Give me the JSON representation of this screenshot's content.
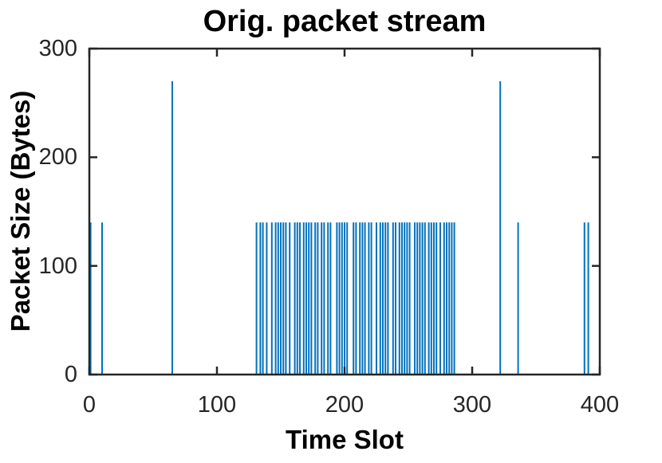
{
  "figure": {
    "background": "#ffffff"
  },
  "chart_data": {
    "type": "bar",
    "subtype": "stem-impulse",
    "title": "Orig. packet stream",
    "xlabel": "Time Slot",
    "ylabel": "Packet Size (Bytes)",
    "xlim": [
      0,
      400
    ],
    "ylim": [
      0,
      300
    ],
    "xticks": [
      0,
      100,
      200,
      300,
      400
    ],
    "yticks": [
      0,
      100,
      200,
      300
    ],
    "grid": false,
    "legend": "none",
    "bar_color": "#0072BD",
    "axis_color": "#262626",
    "tick_label_color": "#262626",
    "series": [
      {
        "name": "packet sizes",
        "points": [
          [
            1,
            140
          ],
          [
            10,
            140
          ],
          [
            65,
            270
          ],
          [
            131,
            140
          ],
          [
            134,
            140
          ],
          [
            136,
            140
          ],
          [
            139,
            140
          ],
          [
            143,
            140
          ],
          [
            146,
            140
          ],
          [
            148,
            140
          ],
          [
            150,
            140
          ],
          [
            152,
            140
          ],
          [
            154,
            140
          ],
          [
            157,
            140
          ],
          [
            161,
            140
          ],
          [
            163,
            140
          ],
          [
            165,
            140
          ],
          [
            168,
            140
          ],
          [
            170,
            140
          ],
          [
            172,
            140
          ],
          [
            174,
            140
          ],
          [
            177,
            140
          ],
          [
            179,
            140
          ],
          [
            182,
            140
          ],
          [
            184,
            140
          ],
          [
            187,
            140
          ],
          [
            189,
            140
          ],
          [
            194,
            140
          ],
          [
            196,
            140
          ],
          [
            198,
            140
          ],
          [
            200,
            140
          ],
          [
            202,
            140
          ],
          [
            207,
            140
          ],
          [
            209,
            140
          ],
          [
            212,
            140
          ],
          [
            214,
            140
          ],
          [
            216,
            140
          ],
          [
            219,
            140
          ],
          [
            221,
            140
          ],
          [
            225,
            140
          ],
          [
            228,
            140
          ],
          [
            230,
            140
          ],
          [
            232,
            140
          ],
          [
            234,
            140
          ],
          [
            238,
            140
          ],
          [
            240,
            140
          ],
          [
            243,
            140
          ],
          [
            245,
            140
          ],
          [
            247,
            140
          ],
          [
            249,
            140
          ],
          [
            251,
            140
          ],
          [
            255,
            140
          ],
          [
            257,
            140
          ],
          [
            259,
            140
          ],
          [
            261,
            140
          ],
          [
            263,
            140
          ],
          [
            266,
            140
          ],
          [
            268,
            140
          ],
          [
            270,
            140
          ],
          [
            272,
            140
          ],
          [
            275,
            140
          ],
          [
            278,
            140
          ],
          [
            280,
            140
          ],
          [
            282,
            140
          ],
          [
            284,
            140
          ],
          [
            286,
            140
          ],
          [
            322,
            270
          ],
          [
            336,
            140
          ],
          [
            388,
            140
          ],
          [
            391,
            140
          ]
        ]
      }
    ]
  }
}
